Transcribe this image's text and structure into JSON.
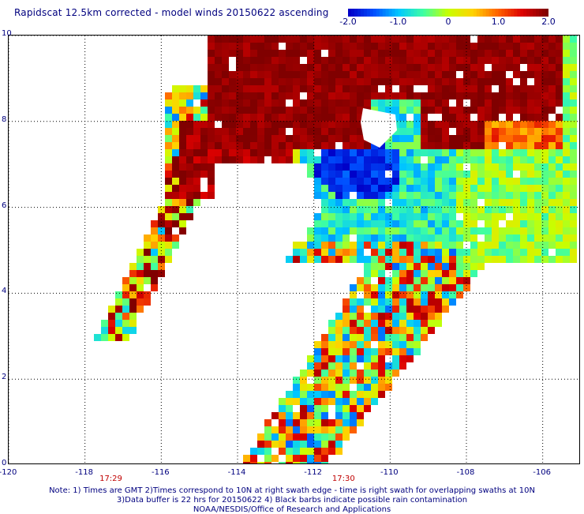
{
  "header": {
    "title": "Rapidscat 12.5km corrected - model winds 20150622 ascending"
  },
  "colorbar": {
    "min": -2.0,
    "max": 2.0,
    "tick_labels": [
      "-2.0",
      "-1.0",
      "0",
      "1.0",
      "2.0"
    ],
    "tick_values": [
      -2.0,
      -1.0,
      0,
      1.0,
      2.0
    ],
    "colors": [
      "#0000c8",
      "#0050ff",
      "#00c8ff",
      "#40ffa0",
      "#c8ff00",
      "#ffd200",
      "#ff6400",
      "#dc0000",
      "#800000"
    ]
  },
  "map": {
    "lon_range": [
      -120,
      -105
    ],
    "lat_range": [
      0,
      10
    ],
    "x_tick_labels": [
      "-120",
      "-118",
      "-116",
      "-114",
      "-112",
      "-110",
      "-108",
      "-106"
    ],
    "x_tick_values": [
      -120,
      -118,
      -116,
      -114,
      -112,
      -110,
      -108,
      -106
    ],
    "y_tick_labels": [
      "10",
      "8",
      "6",
      "4",
      "2",
      "0"
    ],
    "y_tick_values": [
      10,
      8,
      6,
      4,
      2,
      0
    ],
    "grid_style": "dotted",
    "time_labels": [
      {
        "text": "17:29",
        "lon": -117.3
      },
      {
        "text": "17:30",
        "lon": -111.2
      }
    ]
  },
  "footer": {
    "note_line1": "Note: 1) Times are GMT 2)Times correspond to 10N at right swath edge - time is right swath for overlapping swaths at 10N",
    "note_line2": "3)Data buffer is 22 hrs for 20150622 4) Black barbs indicate possible rain contamination",
    "note_line3": "NOAA/NESDIS/Office of Research and Applications"
  }
}
